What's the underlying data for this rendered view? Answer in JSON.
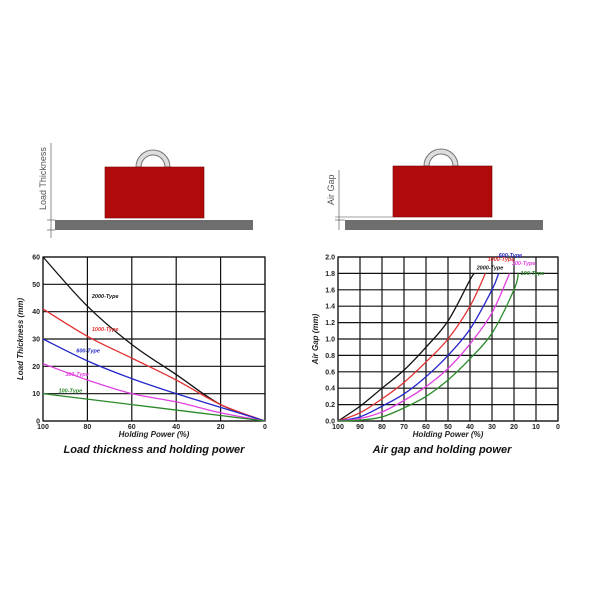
{
  "diagrams": [
    {
      "label": "Load Thickness",
      "magnet_color": "#b00a0a",
      "plate_color": "#6e6e6e"
    },
    {
      "label": "Air Gap",
      "magnet_color": "#b00a0a",
      "plate_color": "#6e6e6e"
    }
  ],
  "chart_data": [
    {
      "type": "line",
      "title": "Load thickness and holding power",
      "xlabel": "Holding Power (%)",
      "ylabel": "Load Thickness (mm)",
      "xlim": [
        100,
        0
      ],
      "ylim": [
        0,
        60
      ],
      "xticks": [
        100,
        80,
        60,
        40,
        20,
        0
      ],
      "yticks": [
        0,
        10,
        20,
        30,
        40,
        50,
        60
      ],
      "grid": true,
      "series": [
        {
          "name": "2000-Type",
          "color": "#111111",
          "x": [
            100,
            80,
            60,
            40,
            20,
            0
          ],
          "y": [
            60,
            42,
            28,
            17,
            6,
            0
          ]
        },
        {
          "name": "1000-Type",
          "color": "#e03030",
          "x": [
            100,
            80,
            60,
            40,
            20,
            0
          ],
          "y": [
            41,
            31,
            23,
            15,
            6,
            0
          ]
        },
        {
          "name": "600-Type",
          "color": "#2525cc",
          "x": [
            100,
            80,
            60,
            40,
            20,
            0
          ],
          "y": [
            30,
            22,
            15.5,
            10,
            5,
            0
          ]
        },
        {
          "name": "300-Type",
          "color": "#e040e0",
          "x": [
            100,
            80,
            60,
            40,
            20,
            0
          ],
          "y": [
            21,
            15,
            10,
            7,
            3,
            0
          ]
        },
        {
          "name": "100-Type",
          "color": "#2a8a2a",
          "x": [
            100,
            80,
            60,
            40,
            20,
            0
          ],
          "y": [
            10,
            8,
            6,
            4,
            2,
            0
          ]
        }
      ]
    },
    {
      "type": "line",
      "title": "Air gap and holding power",
      "xlabel": "Holding Power (%)",
      "ylabel": "Air Gap (mm)",
      "xlim": [
        100,
        0
      ],
      "ylim": [
        0,
        2.0
      ],
      "xticks": [
        100,
        90,
        80,
        70,
        60,
        50,
        40,
        30,
        20,
        10,
        0
      ],
      "yticks": [
        "0.0",
        "0.2",
        "0.4",
        "0.6",
        "0.8",
        "1.0",
        "1.2",
        "1.4",
        "1.6",
        "1.8",
        "2.0"
      ],
      "grid": true,
      "series": [
        {
          "name": "2000-Type",
          "color": "#111111",
          "x": [
            100,
            90,
            80,
            70,
            60,
            50,
            40,
            38
          ],
          "y": [
            0,
            0.18,
            0.4,
            0.62,
            0.9,
            1.22,
            1.72,
            1.8
          ]
        },
        {
          "name": "1000-Type",
          "color": "#e03030",
          "x": [
            100,
            90,
            80,
            70,
            60,
            50,
            40,
            33
          ],
          "y": [
            0,
            0.1,
            0.27,
            0.47,
            0.72,
            1.0,
            1.4,
            1.8
          ]
        },
        {
          "name": "600-Type",
          "color": "#2525cc",
          "x": [
            100,
            90,
            80,
            70,
            60,
            50,
            40,
            30,
            27
          ],
          "y": [
            0,
            0.05,
            0.18,
            0.33,
            0.54,
            0.8,
            1.12,
            1.6,
            1.8
          ]
        },
        {
          "name": "300-Type",
          "color": "#e040e0",
          "x": [
            100,
            90,
            80,
            70,
            60,
            50,
            40,
            30,
            22
          ],
          "y": [
            0,
            0.03,
            0.11,
            0.25,
            0.42,
            0.64,
            0.94,
            1.32,
            1.8
          ]
        },
        {
          "name": "100-Type",
          "color": "#2a8a2a",
          "x": [
            100,
            90,
            80,
            70,
            60,
            50,
            40,
            30,
            20,
            18
          ],
          "y": [
            0,
            0.01,
            0.05,
            0.16,
            0.3,
            0.5,
            0.76,
            1.07,
            1.6,
            1.8
          ]
        }
      ]
    }
  ]
}
